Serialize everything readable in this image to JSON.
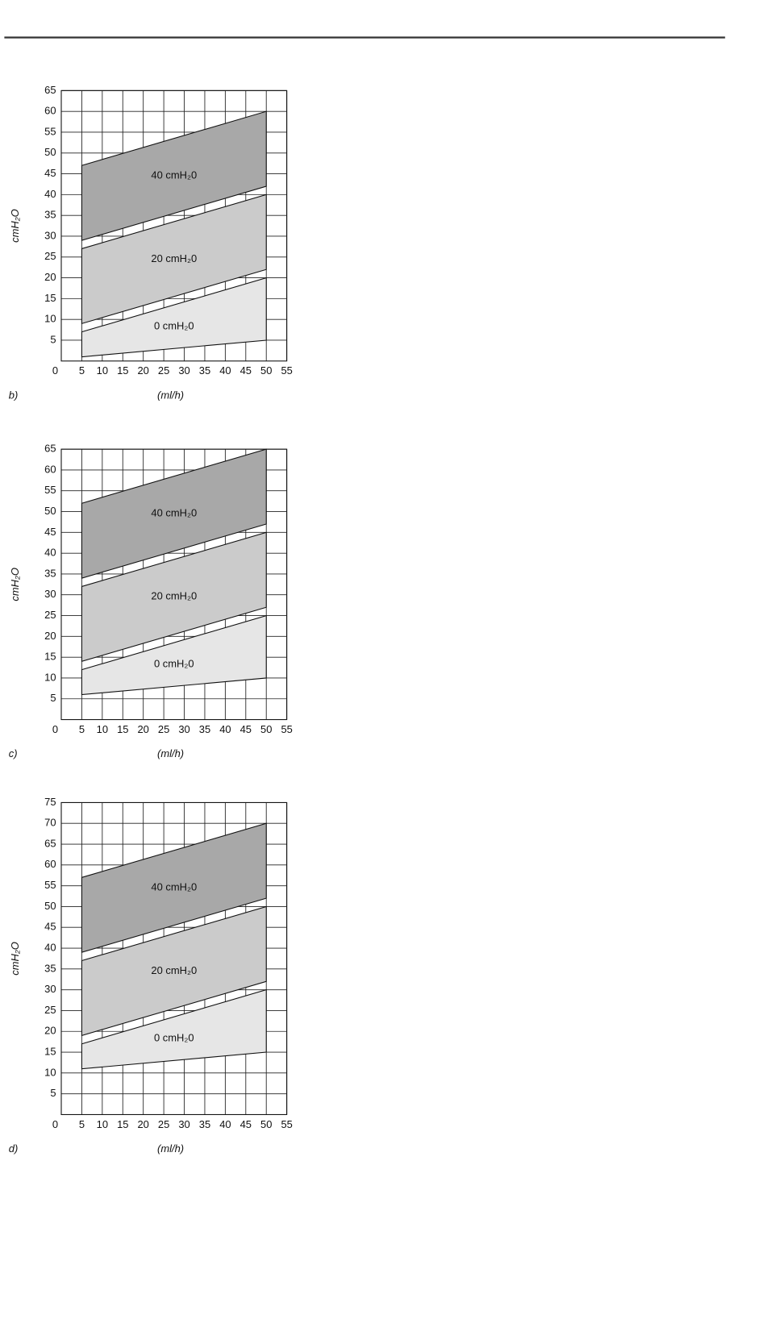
{
  "chart_data": [
    {
      "type": "band",
      "panel_label": "b)",
      "x_label": "(ml/h)",
      "y_label": "cmH₂O",
      "x": [
        5,
        50
      ],
      "xlim": [
        0,
        55
      ],
      "xticks": [
        0,
        5,
        10,
        15,
        20,
        25,
        30,
        35,
        40,
        45,
        50,
        55
      ],
      "ylim": [
        0,
        65
      ],
      "yticks": [
        5,
        10,
        15,
        20,
        25,
        30,
        35,
        40,
        45,
        50,
        55,
        60,
        65
      ],
      "grid": true,
      "series": [
        {
          "name": "40 cmH₂0",
          "color": "#a8a8a8",
          "lower": [
            29,
            42
          ],
          "values": [
            47,
            60
          ]
        },
        {
          "name": "20 cmH₂0",
          "color": "#cbcbcb",
          "lower": [
            9,
            22
          ],
          "values": [
            27,
            40
          ]
        },
        {
          "name": "0 cmH₂0",
          "color": "#e6e6e6",
          "lower": [
            1,
            5
          ],
          "values": [
            7,
            20
          ]
        }
      ]
    },
    {
      "type": "band",
      "panel_label": "c)",
      "x_label": "(ml/h)",
      "y_label": "cmH₂O",
      "x": [
        5,
        50
      ],
      "xlim": [
        0,
        55
      ],
      "xticks": [
        0,
        5,
        10,
        15,
        20,
        25,
        30,
        35,
        40,
        45,
        50,
        55
      ],
      "ylim": [
        0,
        65
      ],
      "yticks": [
        5,
        10,
        15,
        20,
        25,
        30,
        35,
        40,
        45,
        50,
        55,
        60,
        65
      ],
      "grid": true,
      "series": [
        {
          "name": "40 cmH₂0",
          "color": "#a8a8a8",
          "lower": [
            34,
            47
          ],
          "values": [
            52,
            65
          ]
        },
        {
          "name": "20 cmH₂0",
          "color": "#cbcbcb",
          "lower": [
            14,
            27
          ],
          "values": [
            32,
            45
          ]
        },
        {
          "name": "0 cmH₂0",
          "color": "#e6e6e6",
          "lower": [
            6,
            10
          ],
          "values": [
            12,
            25
          ]
        }
      ]
    },
    {
      "type": "band",
      "panel_label": "d)",
      "x_label": "(ml/h)",
      "y_label": "cmH₂O",
      "x": [
        5,
        50
      ],
      "xlim": [
        0,
        55
      ],
      "xticks": [
        0,
        5,
        10,
        15,
        20,
        25,
        30,
        35,
        40,
        45,
        50,
        55
      ],
      "ylim": [
        0,
        75
      ],
      "yticks": [
        5,
        10,
        15,
        20,
        25,
        30,
        35,
        40,
        45,
        50,
        55,
        60,
        65,
        70,
        75
      ],
      "grid": true,
      "series": [
        {
          "name": "40 cmH₂0",
          "color": "#a8a8a8",
          "lower": [
            39,
            52
          ],
          "values": [
            57,
            70
          ]
        },
        {
          "name": "20 cmH₂0",
          "color": "#cbcbcb",
          "lower": [
            19,
            32
          ],
          "values": [
            37,
            50
          ]
        },
        {
          "name": "0 cmH₂0",
          "color": "#e6e6e6",
          "lower": [
            11,
            15
          ],
          "values": [
            17,
            30
          ]
        }
      ]
    }
  ]
}
